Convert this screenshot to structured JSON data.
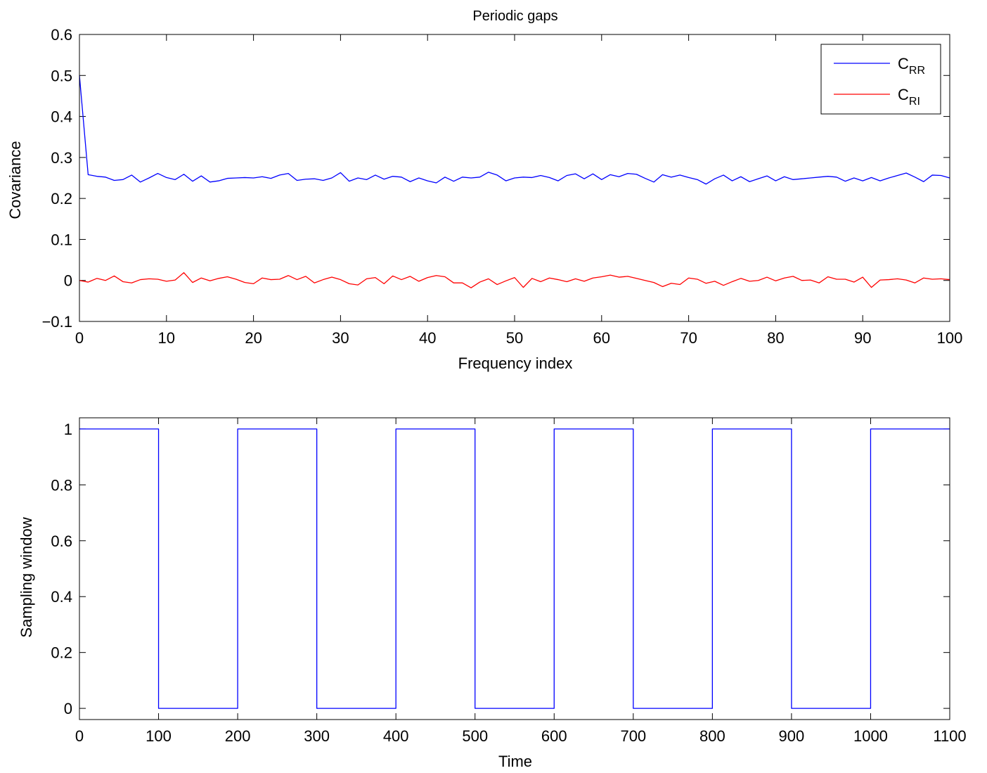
{
  "chart_data": [
    {
      "type": "line",
      "title": "Periodic gaps",
      "xlabel": "Frequency index",
      "ylabel": "Covariance",
      "xlim": [
        0,
        100
      ],
      "ylim": [
        -0.1,
        0.6
      ],
      "xticks": [
        0,
        10,
        20,
        30,
        40,
        50,
        60,
        70,
        80,
        90,
        100
      ],
      "xtick_labels": [
        "0",
        "10",
        "20",
        "30",
        "40",
        "50",
        "60",
        "70",
        "80",
        "90",
        "100"
      ],
      "yticks": [
        -0.1,
        0,
        0.1,
        0.2,
        0.3,
        0.4,
        0.5,
        0.6
      ],
      "ytick_labels": [
        "−0.1",
        "0",
        "0.1",
        "0.2",
        "0.3",
        "0.4",
        "0.5",
        "0.6"
      ],
      "grid": false,
      "legend_position": "top-right",
      "series": [
        {
          "name": "C_RR",
          "label_main": "C",
          "label_sub": "RR",
          "color": "#0000ff",
          "x": [
            0,
            1,
            2,
            3,
            4,
            5,
            6,
            7,
            8,
            9,
            10,
            11,
            12,
            13,
            14,
            15,
            16,
            17,
            18,
            19,
            20,
            21,
            22,
            23,
            24,
            25,
            26,
            27,
            28,
            29,
            30,
            31,
            32,
            33,
            34,
            35,
            36,
            37,
            38,
            39,
            40,
            41,
            42,
            43,
            44,
            45,
            46,
            47,
            48,
            49,
            50,
            51,
            52,
            53,
            54,
            55,
            56,
            57,
            58,
            59,
            60,
            61,
            62,
            63,
            64,
            65,
            66,
            67,
            68,
            69,
            70,
            71,
            72,
            73,
            74,
            75,
            76,
            77,
            78,
            79,
            80,
            81,
            82,
            83,
            84,
            85,
            86,
            87,
            88,
            89,
            90,
            91,
            92,
            93,
            94,
            95,
            96,
            97,
            98,
            99,
            100
          ],
          "values": [
            0.5,
            0.258,
            0.254,
            0.252,
            0.244,
            0.246,
            0.257,
            0.24,
            0.25,
            0.261,
            0.251,
            0.246,
            0.259,
            0.242,
            0.255,
            0.24,
            0.243,
            0.249,
            0.25,
            0.251,
            0.25,
            0.253,
            0.249,
            0.257,
            0.261,
            0.244,
            0.247,
            0.248,
            0.244,
            0.25,
            0.263,
            0.242,
            0.25,
            0.246,
            0.257,
            0.247,
            0.254,
            0.252,
            0.241,
            0.25,
            0.243,
            0.238,
            0.252,
            0.242,
            0.252,
            0.25,
            0.252,
            0.264,
            0.257,
            0.243,
            0.25,
            0.252,
            0.251,
            0.256,
            0.251,
            0.243,
            0.256,
            0.26,
            0.248,
            0.26,
            0.246,
            0.258,
            0.253,
            0.261,
            0.259,
            0.249,
            0.24,
            0.258,
            0.252,
            0.257,
            0.251,
            0.246,
            0.235,
            0.248,
            0.257,
            0.243,
            0.253,
            0.241,
            0.248,
            0.255,
            0.243,
            0.253,
            0.246,
            0.248,
            0.25,
            0.252,
            0.254,
            0.252,
            0.242,
            0.25,
            0.243,
            0.251,
            0.243,
            0.25,
            0.256,
            0.262,
            0.252,
            0.241,
            0.257,
            0.256,
            0.25
          ]
        },
        {
          "name": "C_RI",
          "label_main": "C",
          "label_sub": "RI",
          "color": "#ff0000",
          "x": [
            0,
            1,
            2,
            3,
            4,
            5,
            6,
            7,
            8,
            9,
            10,
            11,
            12,
            13,
            14,
            15,
            16,
            17,
            18,
            19,
            20,
            21,
            22,
            23,
            24,
            25,
            26,
            27,
            28,
            29,
            30,
            31,
            32,
            33,
            34,
            35,
            36,
            37,
            38,
            39,
            40,
            41,
            42,
            43,
            44,
            45,
            46,
            47,
            48,
            49,
            50,
            51,
            52,
            53,
            54,
            55,
            56,
            57,
            58,
            59,
            60,
            61,
            62,
            63,
            64,
            65,
            66,
            67,
            68,
            69,
            70,
            71,
            72,
            73,
            74,
            75,
            76,
            77,
            78,
            79,
            80,
            81,
            82,
            83,
            84,
            85,
            86,
            87,
            88,
            89,
            90,
            91,
            92,
            93,
            94,
            95,
            96,
            97,
            98,
            99,
            100
          ],
          "values": [
            0,
            -0.004,
            0.005,
            0,
            0.011,
            -0.003,
            -0.006,
            0.002,
            0.004,
            0.003,
            -0.002,
            0.001,
            0.019,
            -0.005,
            0.006,
            -0.001,
            0.005,
            0.009,
            0.003,
            -0.005,
            -0.008,
            0.006,
            0.002,
            0.003,
            0.012,
            0.002,
            0.01,
            -0.006,
            0.002,
            0.008,
            0.002,
            -0.008,
            -0.011,
            0.004,
            0.007,
            -0.008,
            0.011,
            0.002,
            0.01,
            -0.002,
            0.007,
            0.012,
            0.009,
            -0.006,
            -0.006,
            -0.018,
            -0.004,
            0.004,
            -0.01,
            -0.001,
            0.007,
            -0.017,
            0.005,
            -0.003,
            0.006,
            0.002,
            -0.003,
            0.004,
            -0.002,
            0.006,
            0.009,
            0.013,
            0.008,
            0.01,
            0.005,
            0,
            -0.005,
            -0.015,
            -0.007,
            -0.01,
            0.006,
            0.003,
            -0.007,
            -0.002,
            -0.012,
            -0.003,
            0.005,
            -0.002,
            0,
            0.008,
            -0.001,
            0.006,
            0.01,
            0,
            0.001,
            -0.006,
            0.009,
            0.003,
            0.003,
            -0.004,
            0.008,
            -0.017,
            0.001,
            0.002,
            0.004,
            0.001,
            -0.006,
            0.006,
            0.003,
            0.004,
            0.002
          ]
        }
      ]
    },
    {
      "type": "line",
      "title": "",
      "xlabel": "Time",
      "ylabel": "Sampling window",
      "xlim": [
        0,
        1100
      ],
      "ylim": [
        -0.04,
        1.04
      ],
      "xticks": [
        0,
        100,
        200,
        300,
        400,
        500,
        600,
        700,
        800,
        900,
        1000,
        1100
      ],
      "xtick_labels": [
        "0",
        "100",
        "200",
        "300",
        "400",
        "500",
        "600",
        "700",
        "800",
        "900",
        "1000",
        "1100"
      ],
      "yticks": [
        0,
        0.2,
        0.4,
        0.6,
        0.8,
        1
      ],
      "ytick_labels": [
        "0",
        "0.2",
        "0.4",
        "0.6",
        "0.8",
        "1"
      ],
      "grid": false,
      "series": [
        {
          "color": "#0000ff",
          "x": [
            0,
            100,
            100,
            200,
            200,
            300,
            300,
            400,
            400,
            500,
            500,
            600,
            600,
            700,
            700,
            800,
            800,
            900,
            900,
            1000,
            1000,
            1100
          ],
          "values": [
            1,
            1,
            0,
            0,
            1,
            1,
            0,
            0,
            1,
            1,
            0,
            0,
            1,
            1,
            0,
            0,
            1,
            1,
            0,
            0,
            1,
            1
          ]
        }
      ]
    }
  ]
}
